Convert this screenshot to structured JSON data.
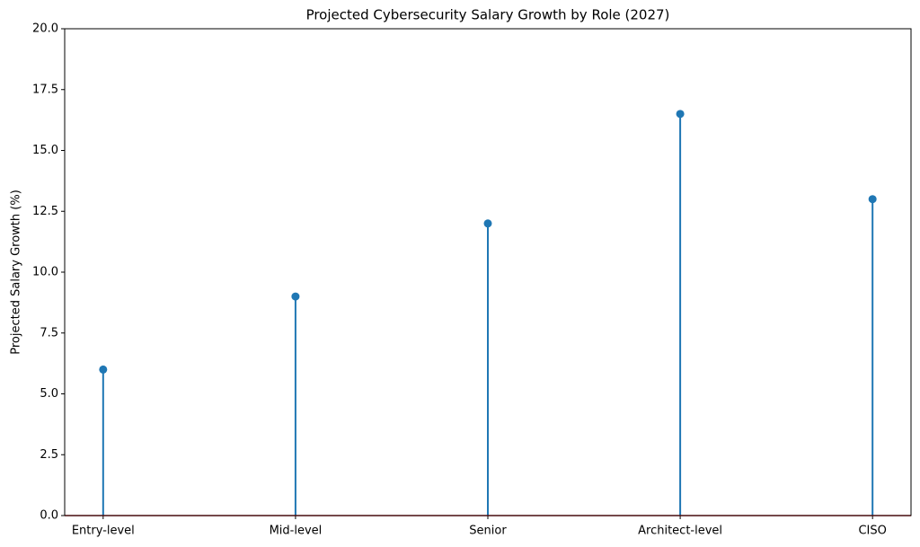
{
  "chart_data": {
    "type": "stem",
    "title": "Projected Cybersecurity Salary Growth by Role (2027)",
    "y_label": "Projected Salary Growth (%)",
    "categories": [
      "Entry-level",
      "Mid-level",
      "Senior",
      "Architect-level",
      "CISO"
    ],
    "values": [
      6,
      9,
      12,
      16.5,
      13
    ],
    "color": "#1f77b4",
    "baseline_color": "#d62728",
    "ylim": [
      0,
      20
    ],
    "yticks": [
      {
        "value": 0,
        "label": "0.0"
      },
      2.5,
      {
        "value": 5,
        "label": "5.0"
      },
      7.5,
      {
        "value": 10,
        "label": "10.0"
      },
      12.5,
      {
        "value": 15,
        "label": "15.0"
      },
      17.5,
      {
        "value": 20,
        "label": "20.0"
      }
    ]
  }
}
